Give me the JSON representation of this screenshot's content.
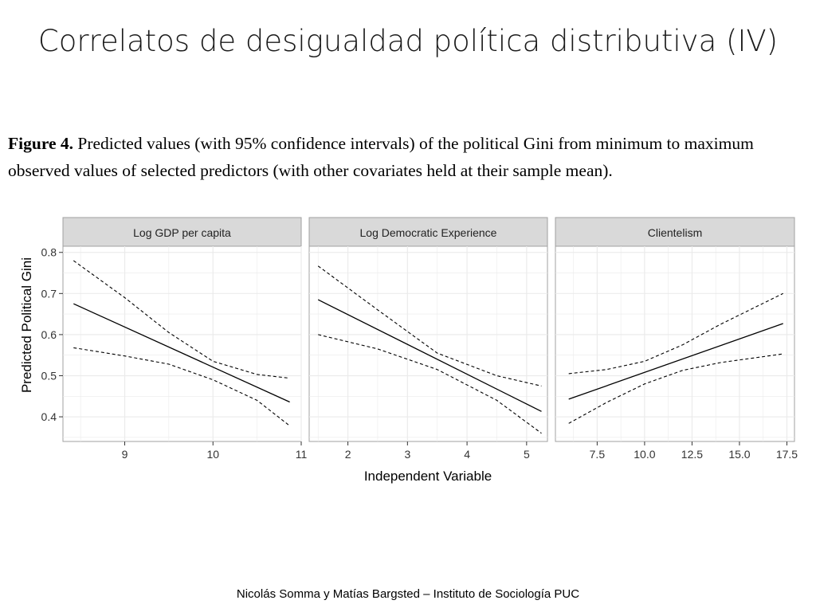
{
  "slide": {
    "title": "Correlatos de desigualdad política distributiva (IV)",
    "footer": "Nicolás Somma y Matías Bargsted – Instituto de Sociología PUC"
  },
  "caption": {
    "label": "Figure 4.",
    "text": "Predicted values (with 95% confidence intervals) of the political Gini from minimum to maximum observed values of selected predictors (with other covariates held at their sample mean)."
  },
  "chart_data": {
    "type": "line",
    "ylabel": "Predicted Political Gini",
    "xlabel": "Independent Variable",
    "ylim": [
      0.34,
      0.815
    ],
    "yticks": [
      0.4,
      0.5,
      0.6,
      0.7,
      0.8
    ],
    "ytick_labels": [
      "0.4",
      "0.5",
      "0.6",
      "0.7",
      "0.8"
    ],
    "grid": true,
    "colors": {
      "panel_bg": "#ffffff",
      "strip_bg": "#d9d9d9",
      "grid": "#ebebeb",
      "line": "#000000"
    },
    "panels": [
      {
        "strip": "Log GDP per capita",
        "xlim": [
          8.3,
          11.0
        ],
        "xticks": [
          9,
          10,
          11
        ],
        "xtick_labels": [
          "9",
          "10",
          "11"
        ],
        "series": [
          {
            "role": "fit",
            "x": [
              8.42,
              10.87
            ],
            "y": [
              0.675,
              0.436
            ]
          },
          {
            "role": "lower",
            "x": [
              8.42,
              9.0,
              9.5,
              10.0,
              10.5,
              10.87
            ],
            "y": [
              0.568,
              0.548,
              0.528,
              0.49,
              0.44,
              0.378
            ]
          },
          {
            "role": "upper",
            "x": [
              8.42,
              9.0,
              9.5,
              10.0,
              10.5,
              10.87
            ],
            "y": [
              0.78,
              0.69,
              0.605,
              0.535,
              0.503,
              0.494
            ]
          }
        ]
      },
      {
        "strip": "Log Democratic Experience",
        "xlim": [
          1.35,
          5.35
        ],
        "xticks": [
          2,
          3,
          4,
          5
        ],
        "xtick_labels": [
          "2",
          "3",
          "4",
          "5"
        ],
        "series": [
          {
            "role": "fit",
            "x": [
              1.5,
              5.25
            ],
            "y": [
              0.685,
              0.413
            ]
          },
          {
            "role": "lower",
            "x": [
              1.5,
              2.5,
              3.5,
              4.5,
              5.25
            ],
            "y": [
              0.6,
              0.565,
              0.515,
              0.44,
              0.36
            ]
          },
          {
            "role": "upper",
            "x": [
              1.5,
              2.5,
              3.5,
              4.5,
              5.25
            ],
            "y": [
              0.767,
              0.66,
              0.555,
              0.5,
              0.475
            ]
          }
        ]
      },
      {
        "strip": "Clientelism",
        "xlim": [
          5.3,
          17.9
        ],
        "xticks": [
          7.5,
          10.0,
          12.5,
          15.0,
          17.5
        ],
        "xtick_labels": [
          "7.5",
          "10.0",
          "12.5",
          "15.0",
          "17.5"
        ],
        "series": [
          {
            "role": "fit",
            "x": [
              6.0,
              17.3
            ],
            "y": [
              0.443,
              0.627
            ]
          },
          {
            "role": "lower",
            "x": [
              6.0,
              8.0,
              10.0,
              12.0,
              14.0,
              17.3
            ],
            "y": [
              0.384,
              0.435,
              0.48,
              0.513,
              0.532,
              0.553
            ]
          },
          {
            "role": "upper",
            "x": [
              6.0,
              8.0,
              10.0,
              12.0,
              14.0,
              17.3
            ],
            "y": [
              0.505,
              0.515,
              0.535,
              0.575,
              0.625,
              0.7
            ]
          }
        ]
      }
    ]
  }
}
